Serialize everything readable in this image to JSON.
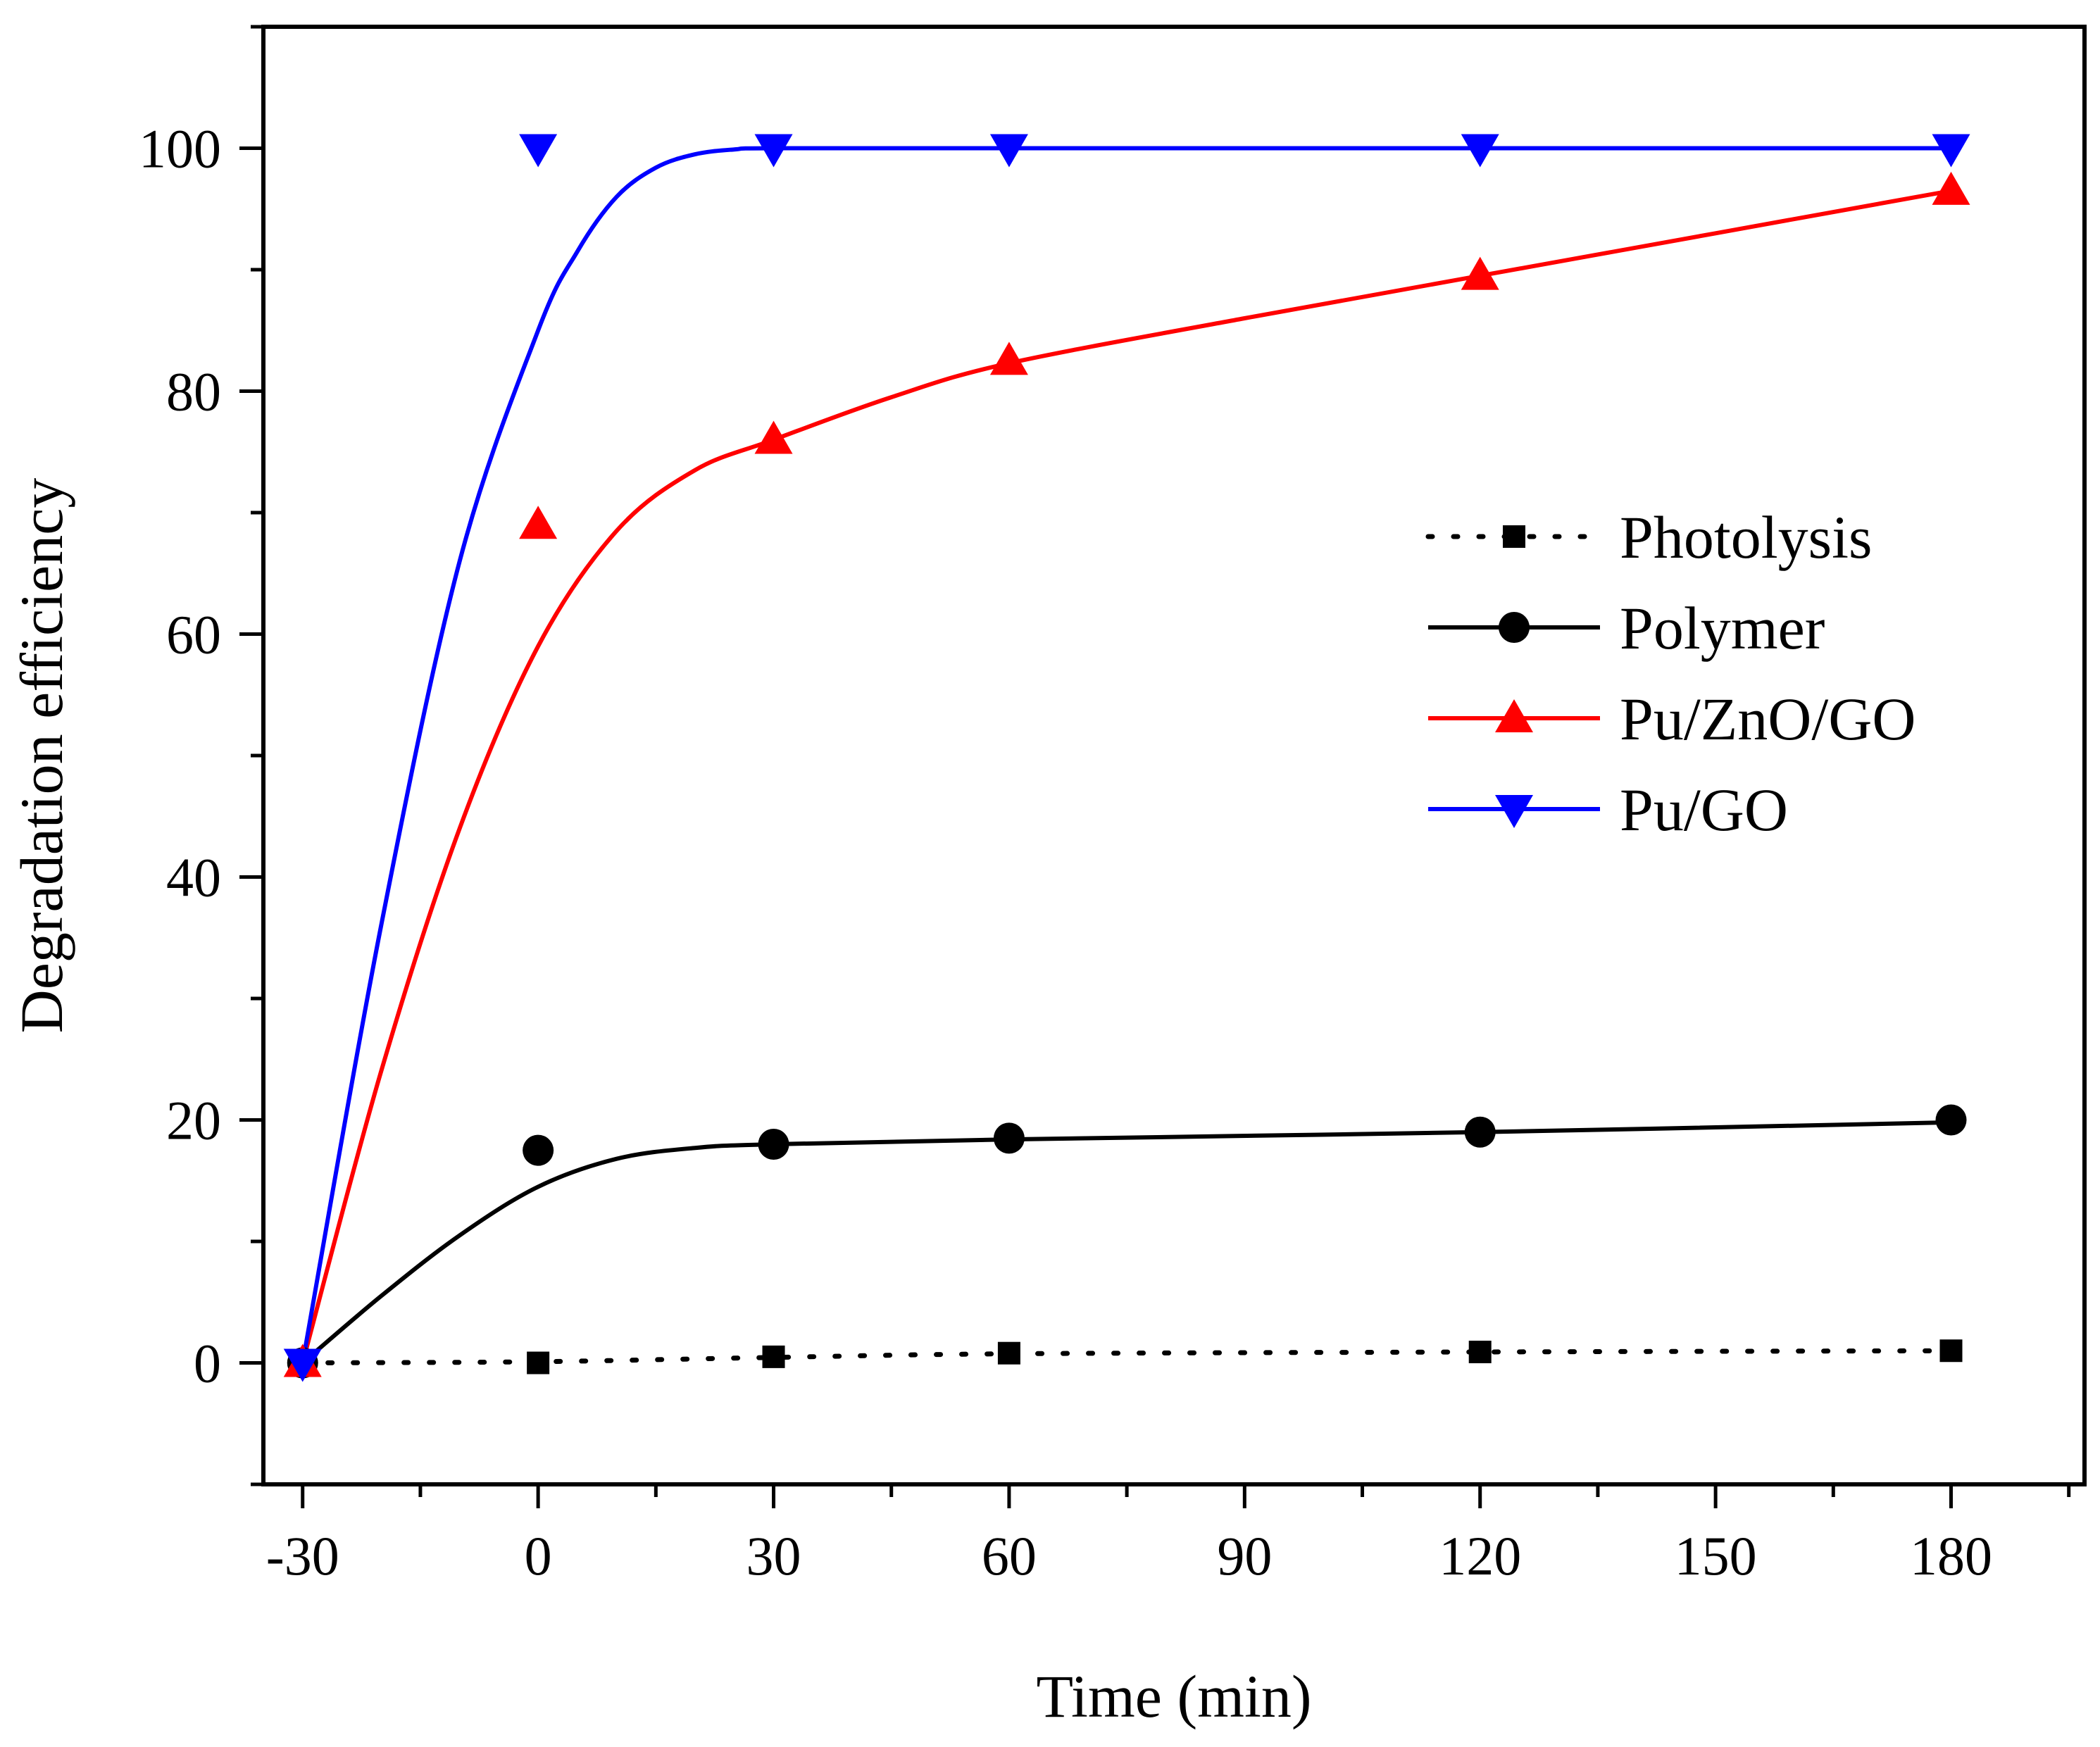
{
  "chart_data": {
    "type": "line",
    "title": "",
    "xlabel": "Time (min)",
    "ylabel": "Degradation efficiency",
    "xlim": [
      -35,
      197
    ],
    "ylim": [
      -10,
      110
    ],
    "xticks": [
      -30,
      0,
      30,
      60,
      90,
      120,
      150,
      180
    ],
    "yticks": [
      0,
      20,
      40,
      60,
      80,
      100
    ],
    "x_minor_ticks": [
      -15,
      15,
      45,
      75,
      105,
      135,
      165,
      195
    ],
    "y_minor_ticks": [
      -10,
      10,
      30,
      50,
      70,
      90,
      110
    ],
    "xtick_labels": [
      "-30",
      "0",
      "30",
      "60",
      "90",
      "120",
      "150",
      "180"
    ],
    "ytick_labels": [
      "0",
      "20",
      "40",
      "60",
      "80",
      "100"
    ],
    "grid": false,
    "legend_position": "right-middle",
    "series": [
      {
        "name": "Photolysis",
        "color": "#000000",
        "marker": "square",
        "line_style": "dotted",
        "x": [
          -30,
          0,
          30,
          60,
          120,
          180
        ],
        "values": [
          0,
          0,
          0.5,
          0.8,
          0.9,
          1.0
        ],
        "fit_curve": [
          [
            -30,
            0
          ],
          [
            0,
            0.1
          ],
          [
            30,
            0.45
          ],
          [
            60,
            0.75
          ],
          [
            120,
            0.9
          ],
          [
            180,
            1.0
          ]
        ]
      },
      {
        "name": "Polymer",
        "color": "#000000",
        "marker": "circle",
        "line_style": "solid",
        "x": [
          -30,
          0,
          30,
          60,
          120,
          180
        ],
        "values": [
          0,
          17.5,
          18.0,
          18.5,
          19.0,
          20.0
        ],
        "fit_curve": [
          [
            -30,
            0
          ],
          [
            -20,
            5.5
          ],
          [
            -10,
            10.5
          ],
          [
            0,
            14.5
          ],
          [
            10,
            16.8
          ],
          [
            20,
            17.7
          ],
          [
            30,
            18.0
          ],
          [
            60,
            18.4
          ],
          [
            120,
            19.0
          ],
          [
            180,
            19.8
          ]
        ]
      },
      {
        "name": "Pu/ZnO/GO",
        "color": "#ff0000",
        "marker": "triangle-up",
        "line_style": "solid",
        "x": [
          -30,
          0,
          30,
          60,
          120,
          180
        ],
        "values": [
          0,
          69,
          76,
          82.5,
          89.5,
          96.5
        ],
        "fit_curve": [
          [
            -30,
            0
          ],
          [
            -20,
            24
          ],
          [
            -10,
            44
          ],
          [
            0,
            59
          ],
          [
            10,
            68.5
          ],
          [
            20,
            73.5
          ],
          [
            30,
            76
          ],
          [
            45,
            79.5
          ],
          [
            60,
            82.3
          ],
          [
            90,
            86
          ],
          [
            120,
            89.5
          ],
          [
            150,
            93
          ],
          [
            180,
            96.5
          ]
        ]
      },
      {
        "name": "Pu/GO",
        "color": "#0000ff",
        "marker": "triangle-down",
        "line_style": "solid",
        "x": [
          -30,
          0,
          30,
          60,
          120,
          180
        ],
        "values": [
          0,
          100,
          100,
          100,
          100,
          100
        ],
        "fit_curve": [
          [
            -30,
            0
          ],
          [
            -20,
            36
          ],
          [
            -10,
            66
          ],
          [
            0,
            85
          ],
          [
            5,
            91.5
          ],
          [
            10,
            96
          ],
          [
            15,
            98.4
          ],
          [
            20,
            99.5
          ],
          [
            25,
            99.9
          ],
          [
            30,
            100
          ],
          [
            60,
            100
          ],
          [
            120,
            100
          ],
          [
            180,
            100
          ]
        ]
      }
    ]
  }
}
